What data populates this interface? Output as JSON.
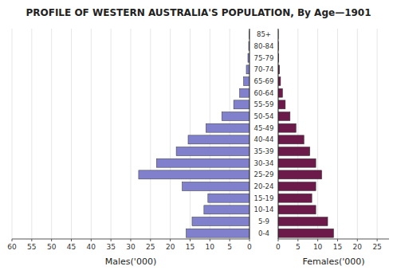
{
  "chart_data": [
    {
      "type": "bar",
      "orientation": "horizontal",
      "title": "PROFILE OF WESTERN AUSTRALIA'S POPULATION, By Age—1901",
      "xlabel": "Males('000)",
      "categories": [
        "0-4",
        "5-9",
        "10-14",
        "15-19",
        "20-24",
        "25-29",
        "30-34",
        "35-39",
        "40-44",
        "45-49",
        "50-54",
        "55-59",
        "60-64",
        "65-69",
        "70-74",
        "75-79",
        "80-84",
        "85+"
      ],
      "values": [
        16.0,
        14.5,
        11.5,
        10.5,
        17.0,
        28.0,
        23.5,
        18.5,
        15.5,
        11.0,
        7.0,
        4.0,
        2.5,
        1.5,
        0.8,
        0.4,
        0.2,
        0.1
      ],
      "color": "#8080cc",
      "xlim": [
        60,
        0
      ],
      "xticks": [
        60,
        55,
        50,
        45,
        40,
        35,
        30,
        25,
        20,
        15,
        10,
        5,
        0
      ],
      "tick_labels": "x"
    },
    {
      "type": "bar",
      "orientation": "horizontal",
      "xlabel": "Females('000)",
      "categories": [
        "0-4",
        "5-9",
        "10-14",
        "15-19",
        "20-24",
        "25-29",
        "30-34",
        "35-39",
        "40-44",
        "45-49",
        "50-54",
        "55-59",
        "60-64",
        "65-69",
        "70-74",
        "75-79",
        "80-84",
        "85+"
      ],
      "values": [
        14.0,
        12.5,
        9.5,
        8.5,
        9.5,
        11.0,
        9.5,
        8.0,
        6.5,
        4.5,
        3.0,
        1.8,
        1.1,
        0.6,
        0.35,
        0.15,
        0.07,
        0.03
      ],
      "color": "#6b1a4a",
      "xlim": [
        0,
        28
      ],
      "xticks": [
        0,
        5,
        10,
        15,
        20,
        25
      ]
    }
  ]
}
